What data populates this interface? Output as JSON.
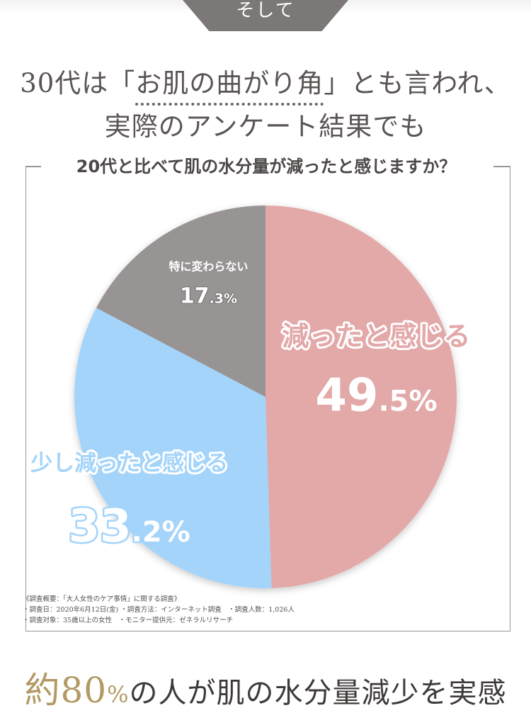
{
  "header": {
    "tab_label": "そして",
    "headline_line1_pre": "30代は「",
    "headline_line1_emph": "お肌の曲がり角",
    "headline_line1_post": "」とも言われ、",
    "headline_line2": "実際のアンケート結果でも"
  },
  "colors": {
    "decreased": "#e3a8a8",
    "slightly": "#a4d4fa",
    "no_change": "#989494"
  },
  "chart_data": {
    "type": "pie",
    "title": "20代と比べて肌の水分量が減ったと感じますか？",
    "slices": [
      {
        "label": "減ったと感じる",
        "value": 49.5,
        "pct_main": "49",
        "pct_tail": ".5%",
        "color": "#e3a8a8"
      },
      {
        "label": "少し減ったと感じる",
        "value": 33.2,
        "pct_main": "33",
        "pct_tail": ".2%",
        "color": "#a4d4fa"
      },
      {
        "label": "特に変わらない",
        "value": 17.3,
        "pct_main": "17",
        "pct_tail": ".3%",
        "color": "#989494"
      }
    ]
  },
  "survey_note": {
    "line1": "《調査概要：「大人女性のケア事情」に関する調査》",
    "line2": "・調査日：2020年6月12日(金) ・調査方法：インターネット調査　・調査人数：1,026人",
    "line3": "・調査対象：35歳以上の女性　・モニター提供元：ゼネラルリサーチ"
  },
  "conclusion": {
    "prefix": "約",
    "number": "80",
    "percent": "%",
    "suffix": "の人が肌の水分量減少を実感"
  }
}
